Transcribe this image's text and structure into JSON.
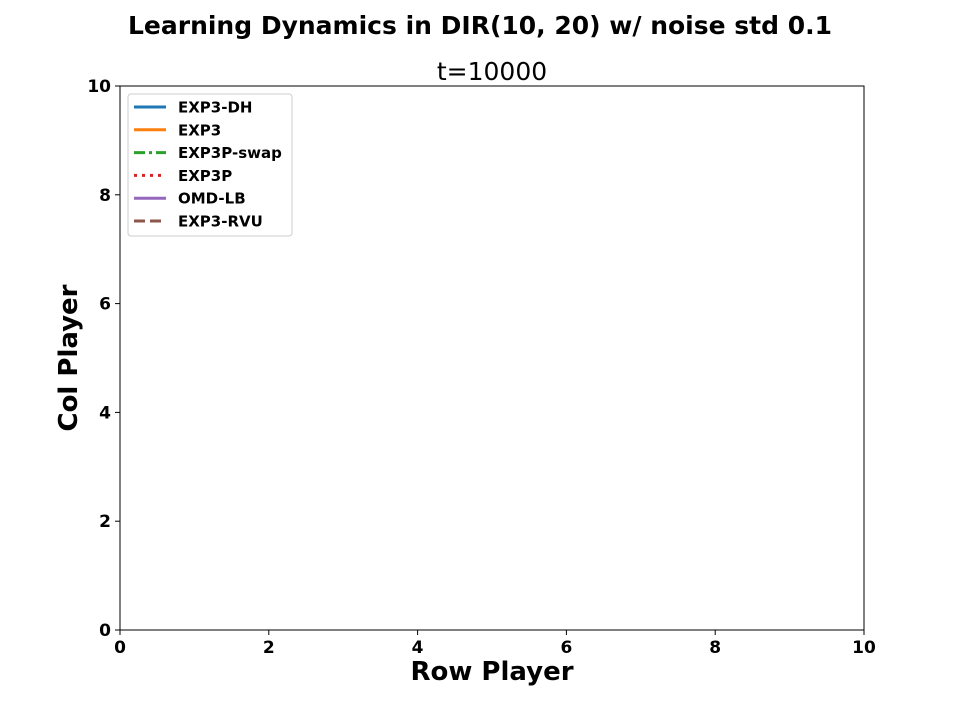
{
  "chart_data": {
    "type": "line",
    "title": "Learning Dynamics in DIR(10, 20) w/ noise std 0.1",
    "subtitle": "t=10000",
    "xlabel": "Row Player",
    "ylabel": "Col Player",
    "xlim": [
      0,
      10
    ],
    "ylim": [
      0,
      10
    ],
    "xticks": [
      "0",
      "2",
      "4",
      "6",
      "8",
      "10"
    ],
    "yticks": [
      "0",
      "2",
      "4",
      "6",
      "8",
      "10"
    ],
    "grid": false,
    "legend_position": "top-left",
    "series": [
      {
        "name": "EXP3-DH",
        "color": "#1f77b4",
        "linestyle": "solid",
        "x": [],
        "y": []
      },
      {
        "name": "EXP3",
        "color": "#ff7f0e",
        "linestyle": "solid",
        "x": [],
        "y": []
      },
      {
        "name": "EXP3P-swap",
        "color": "#2ca02c",
        "linestyle": "dashdot",
        "x": [],
        "y": []
      },
      {
        "name": "EXP3P",
        "color": "#d62728",
        "linestyle": "dotted",
        "x": [],
        "y": []
      },
      {
        "name": "OMD-LB",
        "color": "#9467bd",
        "linestyle": "solid",
        "x": [],
        "y": []
      },
      {
        "name": "EXP3-RVU",
        "color": "#8c564b",
        "linestyle": "dashed",
        "x": [],
        "y": []
      }
    ]
  }
}
